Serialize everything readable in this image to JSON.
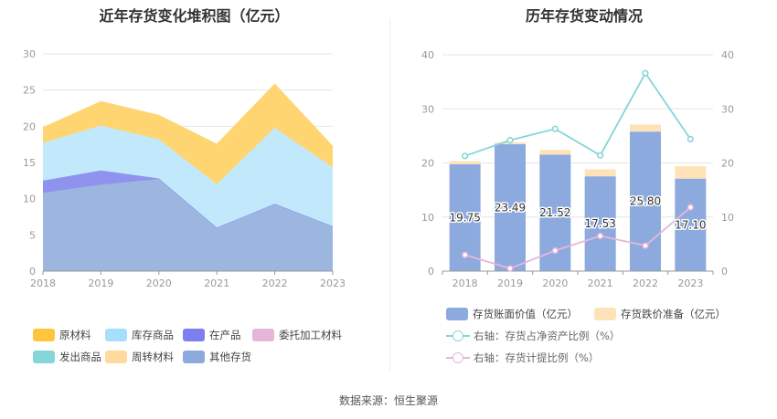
{
  "source": "数据来源：恒生聚源",
  "chart_data": [
    {
      "type": "area",
      "stacked": true,
      "title": "近年存货变化堆积图（亿元）",
      "x": [
        "2018",
        "2019",
        "2020",
        "2021",
        "2022",
        "2023"
      ],
      "y_ticks": [
        "0",
        "5",
        "10",
        "15",
        "20",
        "25",
        "30"
      ],
      "ylim": [
        0,
        30
      ],
      "grid": true,
      "legend_position": "bottom",
      "series": [
        {
          "name": "其他存货",
          "color": "#9DB6E0",
          "values": [
            10.9,
            12.0,
            12.8,
            6.0,
            9.3,
            6.2
          ]
        },
        {
          "name": "在产品",
          "color": "#8F93EE",
          "values": [
            1.6,
            1.9,
            0.0,
            0.0,
            0.0,
            0.0
          ]
        },
        {
          "name": "库存商品",
          "color": "#C2E9FB",
          "values": [
            5.2,
            6.2,
            5.4,
            6.0,
            10.5,
            8.1
          ]
        },
        {
          "name": "原材料",
          "color": "#FFD572",
          "values": [
            2.1,
            3.3,
            3.3,
            5.5,
            6.0,
            2.9
          ]
        }
      ],
      "legend": [
        {
          "name": "原材料",
          "color": "#FFC53D"
        },
        {
          "name": "库存商品",
          "color": "#A7DFFB"
        },
        {
          "name": "在产品",
          "color": "#7D7FEF"
        },
        {
          "name": "委托加工材料",
          "color": "#E6B6DA"
        },
        {
          "name": "发出商品",
          "color": "#86D5D8"
        },
        {
          "name": "周转材料",
          "color": "#FFD99E"
        },
        {
          "name": "其他存货",
          "color": "#8DAADE"
        }
      ]
    },
    {
      "type": "bar",
      "stacked": true,
      "title": "历年存货变动情况",
      "categories": [
        "2018",
        "2019",
        "2020",
        "2021",
        "2022",
        "2023"
      ],
      "y_ticks": [
        "0",
        "10",
        "20",
        "30",
        "40"
      ],
      "ylim": [
        0,
        40
      ],
      "y2_ticks": [
        "0",
        "10",
        "20",
        "30",
        "40"
      ],
      "y2lim": [
        0,
        40
      ],
      "grid": true,
      "legend_position": "bottom",
      "series": [
        {
          "name": "存货账面价值（亿元）",
          "color": "#8DAADE",
          "values": [
            19.75,
            23.49,
            21.52,
            17.53,
            25.8,
            17.1
          ],
          "labels": [
            "19.75",
            "23.49",
            "21.52",
            "17.53",
            "25.80",
            "17.10"
          ]
        },
        {
          "name": "存货跌价准备（亿元）",
          "color": "#FFE3B8",
          "values": [
            0.6,
            0.3,
            0.9,
            1.3,
            1.3,
            2.3
          ]
        }
      ],
      "line_series": [
        {
          "name": "右轴：存货占净资产比例（%）",
          "color": "#86D5D8",
          "axis": "right",
          "values": [
            21.3,
            24.2,
            26.3,
            21.4,
            36.6,
            24.4
          ]
        },
        {
          "name": "右轴：存货计提比例（%）",
          "color": "#E6B6DA",
          "axis": "right",
          "values": [
            3.0,
            0.5,
            3.8,
            6.5,
            4.7,
            11.8
          ]
        }
      ]
    }
  ]
}
